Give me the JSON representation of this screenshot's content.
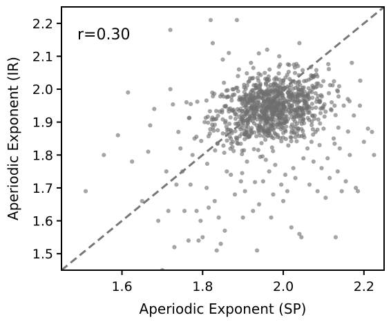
{
  "chart_data": {
    "type": "scatter",
    "xlabel": "Aperiodic Exponent (SP)",
    "ylabel": "Aperiodic Exponent (IR)",
    "annotation": "r=0.30",
    "xlim": [
      1.45,
      2.25
    ],
    "ylim": [
      1.45,
      2.25
    ],
    "x_ticks": [
      1.6,
      1.8,
      2.0,
      2.2
    ],
    "y_ticks": [
      1.5,
      1.6,
      1.7,
      1.8,
      1.9,
      2.0,
      2.1,
      2.2
    ],
    "x_tick_labels": [
      "1.6",
      "1.8",
      "2.0",
      "2.2"
    ],
    "y_tick_labels": [
      "1.5",
      "1.6",
      "1.7",
      "1.8",
      "1.9",
      "2.0",
      "2.1",
      "2.2"
    ],
    "reference_line": {
      "style": "dashed",
      "slope": 1,
      "intercept": 0,
      "color": "#777777"
    },
    "point_color": "#6e6e6e",
    "grid": false,
    "cluster": {
      "center": [
        1.97,
        1.94
      ],
      "spread": [
        0.07,
        0.055
      ],
      "count": 900
    },
    "points": [
      [
        1.51,
        1.69
      ],
      [
        1.555,
        1.8
      ],
      [
        1.59,
        1.86
      ],
      [
        1.615,
        1.99
      ],
      [
        1.625,
        1.78
      ],
      [
        1.65,
        1.66
      ],
      [
        1.665,
        1.81
      ],
      [
        1.67,
        1.89
      ],
      [
        1.68,
        1.94
      ],
      [
        1.69,
        1.6
      ],
      [
        1.7,
        1.45
      ],
      [
        1.71,
        1.75
      ],
      [
        1.715,
        1.63
      ],
      [
        1.72,
        2.18
      ],
      [
        1.72,
        2.0
      ],
      [
        1.73,
        1.52
      ],
      [
        1.735,
        1.71
      ],
      [
        1.74,
        1.87
      ],
      [
        1.745,
        1.82
      ],
      [
        1.75,
        1.75
      ],
      [
        1.755,
        1.63
      ],
      [
        1.76,
        1.96
      ],
      [
        1.765,
        1.54
      ],
      [
        1.77,
        1.71
      ],
      [
        1.775,
        1.8
      ],
      [
        1.78,
        1.85
      ],
      [
        1.785,
        1.63
      ],
      [
        1.79,
        1.54
      ],
      [
        1.795,
        1.6
      ],
      [
        1.8,
        1.55
      ],
      [
        1.805,
        1.9
      ],
      [
        1.81,
        1.7
      ],
      [
        1.815,
        1.64
      ],
      [
        1.82,
        2.21
      ],
      [
        1.825,
        2.14
      ],
      [
        1.83,
        1.66
      ],
      [
        1.835,
        1.51
      ],
      [
        1.84,
        1.61
      ],
      [
        1.845,
        1.53
      ],
      [
        1.85,
        2.09
      ],
      [
        1.855,
        1.57
      ],
      [
        1.86,
        1.75
      ],
      [
        1.865,
        2.11
      ],
      [
        1.87,
        1.74
      ],
      [
        1.875,
        1.84
      ],
      [
        1.88,
        1.68
      ],
      [
        1.885,
        2.21
      ],
      [
        1.89,
        2.06
      ],
      [
        1.895,
        1.72
      ],
      [
        1.9,
        1.61
      ],
      [
        1.905,
        1.69
      ],
      [
        1.91,
        1.78
      ],
      [
        1.92,
        2.08
      ],
      [
        1.925,
        1.63
      ],
      [
        1.935,
        1.51
      ],
      [
        1.94,
        1.65
      ],
      [
        1.95,
        1.72
      ],
      [
        1.96,
        2.12
      ],
      [
        1.965,
        1.75
      ],
      [
        1.97,
        1.61
      ],
      [
        1.975,
        1.68
      ],
      [
        1.98,
        1.77
      ],
      [
        1.99,
        2.1
      ],
      [
        1.995,
        1.71
      ],
      [
        2.0,
        1.66
      ],
      [
        2.005,
        1.74
      ],
      [
        2.01,
        1.69
      ],
      [
        2.02,
        1.58
      ],
      [
        2.025,
        1.76
      ],
      [
        2.03,
        1.73
      ],
      [
        2.04,
        1.56
      ],
      [
        2.04,
        2.14
      ],
      [
        2.045,
        1.55
      ],
      [
        2.05,
        1.79
      ],
      [
        2.06,
        1.82
      ],
      [
        2.065,
        1.71
      ],
      [
        2.07,
        1.84
      ],
      [
        2.075,
        1.78
      ],
      [
        2.08,
        1.87
      ],
      [
        2.085,
        1.69
      ],
      [
        2.09,
        1.83
      ],
      [
        2.095,
        1.76
      ],
      [
        2.1,
        1.88
      ],
      [
        2.105,
        1.67
      ],
      [
        2.11,
        1.79
      ],
      [
        2.115,
        1.73
      ],
      [
        2.12,
        1.96
      ],
      [
        2.125,
        1.85
      ],
      [
        2.13,
        1.55
      ],
      [
        2.135,
        1.75
      ],
      [
        2.14,
        1.82
      ],
      [
        2.145,
        1.69
      ],
      [
        2.15,
        1.95
      ],
      [
        2.155,
        1.72
      ],
      [
        2.16,
        1.97
      ],
      [
        2.165,
        1.8
      ],
      [
        2.175,
        1.92
      ],
      [
        2.18,
        1.7
      ],
      [
        2.19,
        1.95
      ],
      [
        2.2,
        1.84
      ],
      [
        2.21,
        1.88
      ],
      [
        2.22,
        1.87
      ],
      [
        2.225,
        1.8
      ],
      [
        2.185,
        1.69
      ],
      [
        2.17,
        2.08
      ]
    ]
  }
}
